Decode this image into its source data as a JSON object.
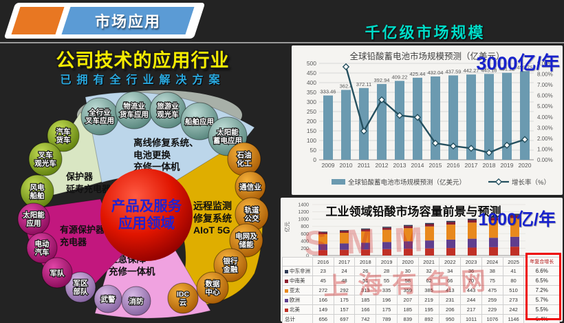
{
  "header": {
    "banner_label": "市场应用",
    "right_title": "千亿级市场规模"
  },
  "left_section": {
    "title": "公司技术的应用行业",
    "subtitle": "已拥有全行业解决方案",
    "center_label_lines": [
      "产品及服务",
      "应用领域"
    ],
    "petals": [
      {
        "id": "protector",
        "label_lines": [
          "保护器",
          "延寿充电器"
        ],
        "balls": [
          [
            "汽车",
            "货车"
          ],
          [
            "叉车",
            "观光车"
          ],
          [
            "风电",
            "船舶"
          ]
        ]
      },
      {
        "id": "offline-repair",
        "label_lines": [
          "离线修复系统、",
          "电池更换",
          "充修一体机"
        ],
        "balls": [
          [
            "全行业",
            "叉车应用"
          ],
          [
            "物流业",
            "货车应用"
          ],
          [
            "旅游业",
            "观光车"
          ],
          [
            "船舶应用"
          ],
          [
            "太阳能",
            "蓄电应用"
          ]
        ]
      },
      {
        "id": "remote-monitoring",
        "label_lines": [
          "远程监测",
          "修复系统",
          "AIoT 5G"
        ],
        "balls": [
          [
            "石油",
            "化工"
          ],
          [
            "通信业"
          ],
          [
            "轨道",
            "公交"
          ],
          [
            "电网及",
            "储能"
          ],
          [
            "银行",
            "金融"
          ],
          [
            "数据",
            "中心"
          ],
          [
            "IDC",
            "云"
          ]
        ]
      },
      {
        "id": "emergency",
        "label_lines": [
          "应急保障",
          "充修一体机"
        ],
        "balls": [
          [
            "军区",
            "部队"
          ],
          [
            "武警"
          ],
          [
            "消防"
          ]
        ]
      },
      {
        "id": "active-protector",
        "label_lines": [
          "有源保护器",
          "充电器"
        ],
        "balls": [
          [
            "太阳能",
            "应用"
          ],
          [
            "电动",
            "汽车"
          ],
          [
            "军队"
          ]
        ]
      }
    ]
  },
  "right_section": {
    "top_annotation": "3000亿/年",
    "bottom_annotation": "1000亿/年",
    "watermark_line1": "SMM",
    "watermark_line2": "上海有色网"
  },
  "chart_data": [
    {
      "type": "bar+line",
      "title": "全球铅酸蓄电池市场规模预测（亿美元）",
      "categories": [
        "2009",
        "2010",
        "2011",
        "2012",
        "2013",
        "2014",
        "2015",
        "2016",
        "2017",
        "2018",
        "2019",
        "2020"
      ],
      "bar_series": {
        "name": "全球铅酸蓄电池市场规模预测（亿美元）",
        "color": "#6b9ab0",
        "values": [
          333.46,
          362.4,
          372.11,
          392.94,
          409.22,
          425.44,
          432.04,
          437.59,
          442.27,
          445.18,
          451.22,
          459.75
        ]
      },
      "line_series": {
        "name": "增长率（%）",
        "color": "#25505f",
        "values": [
          null,
          8.68,
          2.68,
          5.6,
          4.14,
          3.96,
          1.55,
          1.28,
          1.07,
          0.66,
          1.36,
          1.89
        ]
      },
      "y_left": {
        "min": 0,
        "max": 500,
        "step": 50
      },
      "y_right": {
        "min": 0,
        "max": 9,
        "step": 1,
        "format": "percent"
      },
      "legend_position": "bottom",
      "grid": true
    },
    {
      "type": "stacked-bar",
      "title": "工业领域铅酸市场容量前景与预测",
      "ylabel": "亿元",
      "ylim": [
        0,
        1400
      ],
      "ytick_step": 200,
      "categories": [
        "2016",
        "2017",
        "2018",
        "2019",
        "2020",
        "2021",
        "2022",
        "2023",
        "2024",
        "2025"
      ],
      "series": [
        {
          "name": "中东非洲",
          "color": "#2e3a55",
          "values": [
            23,
            24,
            26,
            28,
            30,
            32,
            34,
            36,
            38,
            41
          ],
          "cagr": "6.6%"
        },
        {
          "name": "中南美",
          "color": "#8c1f2f",
          "values": [
            45,
            48,
            51,
            55,
            58,
            62,
            66,
            70,
            75,
            80
          ],
          "cagr": "6.5%"
        },
        {
          "name": "亚太",
          "color": "#e8891d",
          "values": [
            272,
            292,
            313,
            335,
            359,
            385,
            413,
            443,
            475,
            510
          ],
          "cagr": "7.2%"
        },
        {
          "name": "欧洲",
          "color": "#5f3e8e",
          "values": [
            166,
            175,
            185,
            196,
            207,
            219,
            231,
            244,
            259,
            273
          ],
          "cagr": "5.7%"
        },
        {
          "name": "北美",
          "color": "#c03026",
          "values": [
            149,
            157,
            166,
            175,
            185,
            195,
            206,
            217,
            229,
            242
          ],
          "cagr": "5.5%"
        }
      ],
      "stack_order_bottom_to_top": [
        "北美",
        "欧洲",
        "亚太",
        "中南美",
        "中东非洲"
      ],
      "total_row": {
        "name": "总计",
        "values": [
          656,
          697,
          742,
          789,
          839,
          892,
          950,
          1011,
          1076,
          1146
        ],
        "cagr": "6.4%"
      },
      "cagr_header": "年复合增长"
    }
  ]
}
